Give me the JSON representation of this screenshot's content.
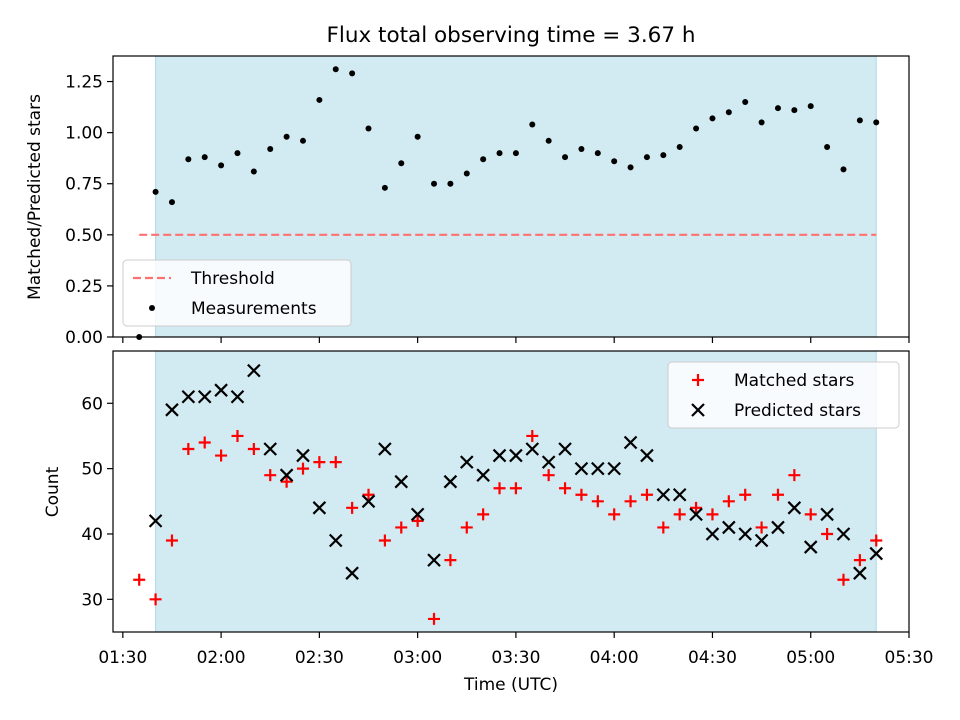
{
  "figure_title": "Flux total observing time = 3.67 h",
  "colors": {
    "shade": "#add8e6",
    "threshold": "#ff7070",
    "measurement": "#000000",
    "matched": "#ff0000",
    "predicted": "#000000"
  },
  "chart_data": [
    {
      "type": "scatter",
      "title": "Flux total observing time = 3.67 h",
      "xlabel": "",
      "ylabel": "Matched/Predicted stars",
      "xlim": [
        "01:27",
        "05:30"
      ],
      "ylim": [
        0,
        1.375
      ],
      "yticks": [
        "0.00",
        "0.25",
        "0.50",
        "0.75",
        "1.00",
        "1.25"
      ],
      "shaded_span": [
        "01:40",
        "05:20"
      ],
      "threshold": {
        "name": "Threshold",
        "y": 0.5,
        "x": [
          "01:35",
          "05:20"
        ]
      },
      "legend": [
        "Threshold",
        "Measurements"
      ],
      "legend_position": "lower-left",
      "series": [
        {
          "name": "Measurements",
          "x": [
            "01:35",
            "01:40",
            "01:45",
            "01:50",
            "01:55",
            "02:00",
            "02:05",
            "02:10",
            "02:15",
            "02:20",
            "02:25",
            "02:30",
            "02:35",
            "02:40",
            "02:45",
            "02:50",
            "02:55",
            "03:00",
            "03:05",
            "03:10",
            "03:15",
            "03:20",
            "03:25",
            "03:30",
            "03:35",
            "03:40",
            "03:45",
            "03:50",
            "03:55",
            "04:00",
            "04:05",
            "04:10",
            "04:15",
            "04:20",
            "04:25",
            "04:30",
            "04:35",
            "04:40",
            "04:45",
            "04:50",
            "04:55",
            "05:00",
            "05:05",
            "05:10",
            "05:15",
            "05:20"
          ],
          "y": [
            0.0,
            0.71,
            0.66,
            0.87,
            0.88,
            0.84,
            0.9,
            0.81,
            0.92,
            0.98,
            0.96,
            1.16,
            1.31,
            1.29,
            1.02,
            0.73,
            0.85,
            0.98,
            0.75,
            0.75,
            0.8,
            0.87,
            0.9,
            0.9,
            1.04,
            0.96,
            0.88,
            0.92,
            0.9,
            0.86,
            0.83,
            0.88,
            0.89,
            0.93,
            1.02,
            1.07,
            1.1,
            1.15,
            1.05,
            1.12,
            1.11,
            1.13,
            0.93,
            0.82,
            1.06,
            1.05
          ]
        }
      ]
    },
    {
      "type": "scatter",
      "xlabel": "Time (UTC)",
      "ylabel": "Count",
      "xlim": [
        "01:27",
        "05:30"
      ],
      "ylim": [
        25,
        68
      ],
      "yticks": [
        "30",
        "40",
        "50",
        "60"
      ],
      "xticks": [
        "01:30",
        "02:00",
        "02:30",
        "03:00",
        "03:30",
        "04:00",
        "04:30",
        "05:00",
        "05:30"
      ],
      "shaded_span": [
        "01:40",
        "05:20"
      ],
      "legend": [
        "Matched stars",
        "Predicted stars"
      ],
      "legend_position": "upper-right",
      "series": [
        {
          "name": "Matched stars",
          "marker": "plus",
          "x": [
            "01:35",
            "01:40",
            "01:45",
            "01:50",
            "01:55",
            "02:00",
            "02:05",
            "02:10",
            "02:15",
            "02:20",
            "02:25",
            "02:30",
            "02:35",
            "02:40",
            "02:45",
            "02:50",
            "02:55",
            "03:00",
            "03:05",
            "03:10",
            "03:15",
            "03:20",
            "03:25",
            "03:30",
            "03:35",
            "03:40",
            "03:45",
            "03:50",
            "03:55",
            "04:00",
            "04:05",
            "04:10",
            "04:15",
            "04:20",
            "04:25",
            "04:30",
            "04:35",
            "04:40",
            "04:45",
            "04:50",
            "04:55",
            "05:00",
            "05:05",
            "05:10",
            "05:15",
            "05:20"
          ],
          "y": [
            33,
            30,
            39,
            53,
            54,
            52,
            55,
            53,
            49,
            48,
            50,
            51,
            51,
            44,
            46,
            39,
            41,
            42,
            27,
            36,
            41,
            43,
            47,
            47,
            55,
            49,
            47,
            46,
            45,
            43,
            45,
            46,
            41,
            43,
            44,
            43,
            45,
            46,
            41,
            46,
            49,
            43,
            40,
            33,
            36,
            39
          ]
        },
        {
          "name": "Predicted stars",
          "marker": "x",
          "x": [
            "01:40",
            "01:45",
            "01:50",
            "01:55",
            "02:00",
            "02:05",
            "02:10",
            "02:15",
            "02:20",
            "02:25",
            "02:30",
            "02:35",
            "02:40",
            "02:45",
            "02:50",
            "02:55",
            "03:00",
            "03:05",
            "03:10",
            "03:15",
            "03:20",
            "03:25",
            "03:30",
            "03:35",
            "03:40",
            "03:45",
            "03:50",
            "03:55",
            "04:00",
            "04:05",
            "04:10",
            "04:15",
            "04:20",
            "04:25",
            "04:30",
            "04:35",
            "04:40",
            "04:45",
            "04:50",
            "04:55",
            "05:00",
            "05:05",
            "05:10",
            "05:15",
            "05:20"
          ],
          "y": [
            42,
            59,
            61,
            61,
            62,
            61,
            65,
            53,
            49,
            52,
            44,
            39,
            34,
            45,
            53,
            48,
            43,
            36,
            48,
            51,
            49,
            52,
            52,
            53,
            51,
            53,
            50,
            50,
            50,
            54,
            52,
            46,
            46,
            43,
            40,
            41,
            40,
            39,
            41,
            44,
            38,
            43,
            40,
            34,
            37
          ]
        }
      ]
    }
  ]
}
